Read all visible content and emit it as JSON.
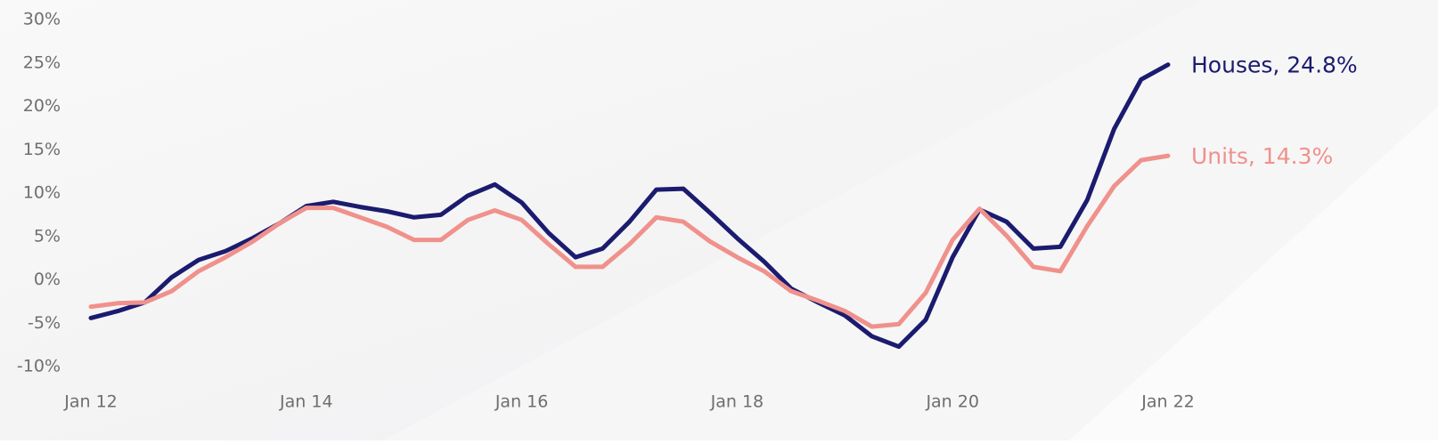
{
  "chart_data": {
    "type": "line",
    "categories": [
      "Jan 12",
      null,
      null,
      null,
      null,
      null,
      null,
      null,
      "Jan 14",
      null,
      null,
      null,
      null,
      null,
      null,
      null,
      "Jan 16",
      null,
      null,
      null,
      null,
      null,
      null,
      null,
      "Jan 18",
      null,
      null,
      null,
      null,
      null,
      null,
      null,
      "Jan 20",
      null,
      null,
      null,
      null,
      null,
      null,
      null,
      "Jan 22"
    ],
    "series": [
      {
        "name": "Houses, 24.8%",
        "color": "#1b1b6f",
        "values": [
          -4.4,
          -3.6,
          -2.6,
          0.3,
          2.3,
          3.3,
          4.8,
          6.5,
          8.5,
          9.0,
          8.4,
          7.9,
          7.2,
          7.5,
          9.7,
          11.0,
          8.9,
          5.4,
          2.6,
          3.6,
          6.7,
          10.4,
          10.5,
          7.7,
          4.8,
          2.1,
          -1.0,
          -2.6,
          -4.1,
          -6.5,
          -7.7,
          -4.6,
          2.6,
          8.1,
          6.7,
          3.6,
          3.8,
          9.2,
          17.4,
          23.1,
          24.8
        ]
      },
      {
        "name": "Units, 14.3%",
        "color": "#f0918b",
        "values": [
          -3.1,
          -2.7,
          -2.6,
          -1.3,
          1.0,
          2.6,
          4.4,
          6.5,
          8.3,
          8.3,
          7.2,
          6.1,
          4.6,
          4.6,
          6.9,
          8.0,
          6.9,
          4.1,
          1.5,
          1.5,
          4.1,
          7.2,
          6.7,
          4.4,
          2.6,
          1.0,
          -1.3,
          -2.4,
          -3.6,
          -5.4,
          -5.1,
          -1.5,
          4.6,
          8.2,
          5.1,
          1.5,
          1.0,
          6.2,
          10.8,
          13.8,
          14.3
        ]
      }
    ],
    "ylim": [
      -10,
      30
    ],
    "yticks": [
      {
        "value": -10,
        "label": "-10%"
      },
      {
        "value": -5,
        "label": "-5%"
      },
      {
        "value": 0,
        "label": "0%"
      },
      {
        "value": 5,
        "label": "5%"
      },
      {
        "value": 10,
        "label": "10%"
      },
      {
        "value": 15,
        "label": "15%"
      },
      {
        "value": 20,
        "label": "20%"
      },
      {
        "value": 25,
        "label": "25%"
      },
      {
        "value": 30,
        "label": "30%"
      }
    ],
    "grid": false
  }
}
